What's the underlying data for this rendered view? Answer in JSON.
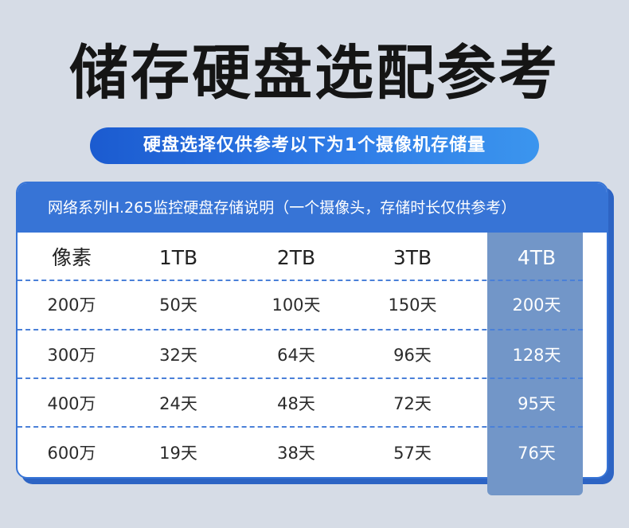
{
  "title": "储存硬盘选配参考",
  "subtitle": "硬盘选择仅供参考以下为1个摄像机存储量",
  "table": {
    "caption": "网络系列H.265监控硬盘存储说明（一个摄像头，存储时长仅供参考）",
    "headers": [
      "像素",
      "1TB",
      "2TB",
      "3TB",
      "4TB"
    ],
    "highlight_column": "4TB",
    "rows": [
      [
        "200万",
        "50天",
        "100天",
        "150天",
        "200天"
      ],
      [
        "300万",
        "32天",
        "64天",
        "96天",
        "128天"
      ],
      [
        "400万",
        "24天",
        "48天",
        "72天",
        "95天"
      ],
      [
        "600万",
        "19天",
        "38天",
        "57天",
        "76天"
      ]
    ]
  },
  "colors": {
    "background": "#d6dce6",
    "accent_blue": "#3774d6",
    "pill_gradient_start": "#1b5bd0",
    "pill_gradient_end": "#3b95ee",
    "highlight_column": "#7296c8",
    "title_text": "#151515"
  }
}
